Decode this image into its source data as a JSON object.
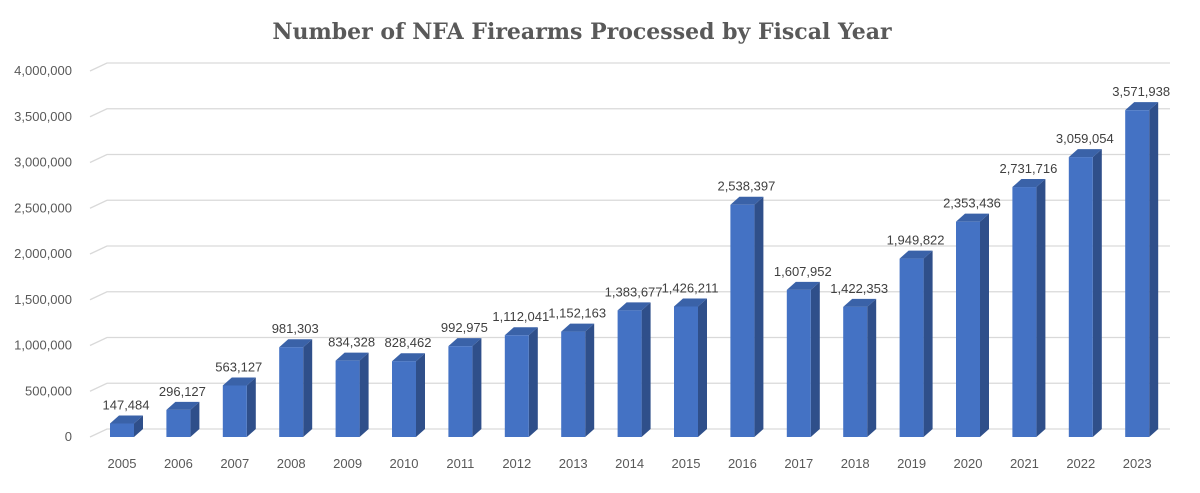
{
  "chart_data": {
    "type": "bar",
    "style": "3d-column",
    "title": "Number of NFA Firearms Processed by Fiscal Year",
    "xlabel": "",
    "ylabel": "",
    "ylim": [
      0,
      4000000
    ],
    "yticks": [
      0,
      500000,
      1000000,
      1500000,
      2000000,
      2500000,
      3000000,
      3500000,
      4000000
    ],
    "ytick_labels": [
      "0",
      "500,000",
      "1,000,000",
      "1,500,000",
      "2,000,000",
      "2,500,000",
      "3,000,000",
      "3,500,000",
      "4,000,000"
    ],
    "grid": true,
    "legend": "none",
    "categories": [
      "2005",
      "2006",
      "2007",
      "2008",
      "2009",
      "2010",
      "2011",
      "2012",
      "2013",
      "2014",
      "2015",
      "2016",
      "2017",
      "2018",
      "2019",
      "2020",
      "2021",
      "2022",
      "2023"
    ],
    "values": [
      147484,
      296127,
      563127,
      981303,
      834328,
      828462,
      992975,
      1112041,
      1152163,
      1383677,
      1426211,
      2538397,
      1607952,
      1422353,
      1949822,
      2353436,
      2731716,
      3059054,
      3571938
    ],
    "data_labels": [
      "147,484",
      "296,127",
      "563,127",
      "981,303",
      "834,328",
      "828,462",
      "992,975",
      "1,112,041",
      "1,152,163",
      "1,383,677",
      "1,426,211",
      "2,538,397",
      "1,607,952",
      "1,422,353",
      "1,949,822",
      "2,353,436",
      "2,731,716",
      "3,059,054",
      "3,571,938"
    ],
    "colors": {
      "front": "#4472c4",
      "side": "#2f4f8a",
      "top": "#3a62a8",
      "grid": "#d9d9d9"
    }
  }
}
